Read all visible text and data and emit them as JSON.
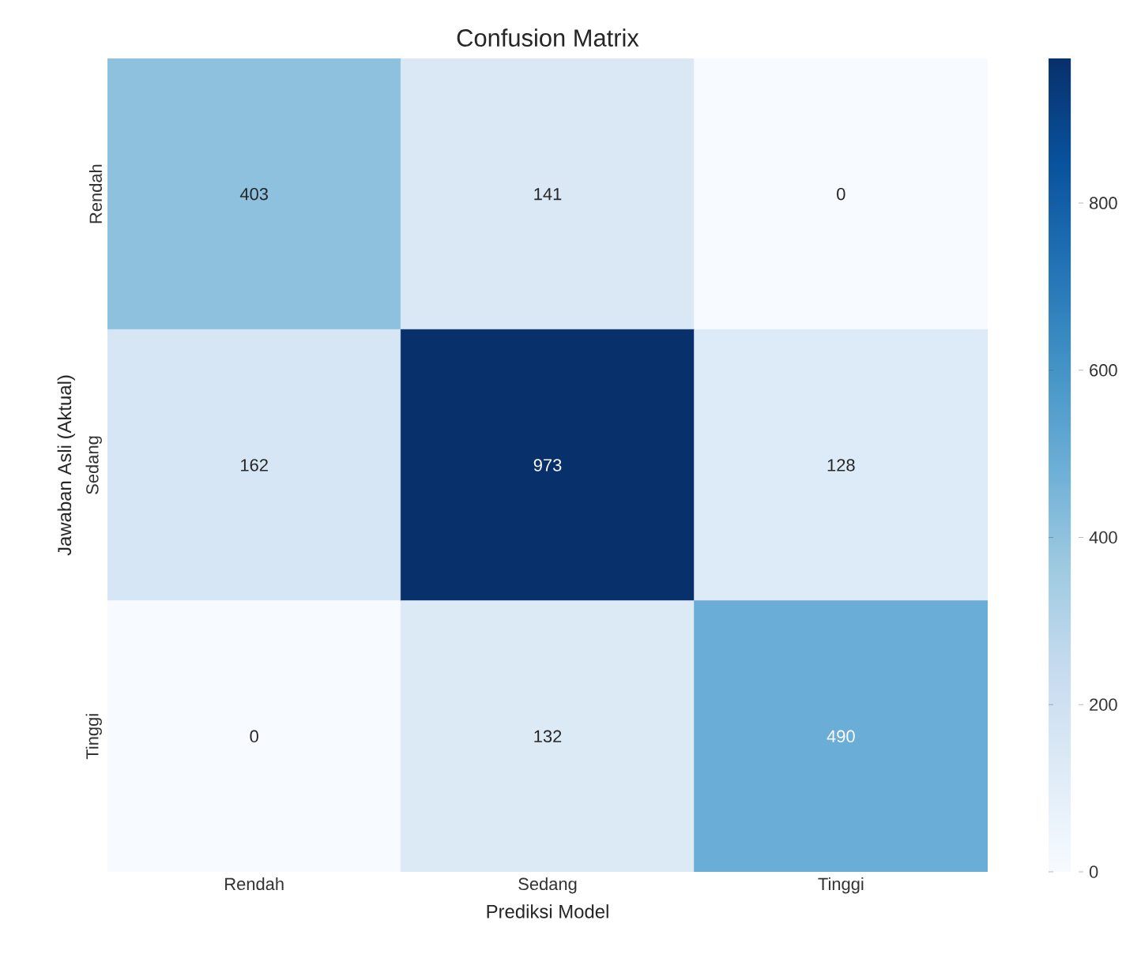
{
  "chart_data": {
    "type": "heatmap",
    "title": "Confusion Matrix",
    "xlabel": "Prediksi Model",
    "ylabel": "Jawaban Asli (Aktual)",
    "categories": [
      "Rendah",
      "Sedang",
      "Tinggi"
    ],
    "y_categories": [
      "Rendah",
      "Sedang",
      "Tinggi"
    ],
    "cells": [
      [
        403,
        141,
        0
      ],
      [
        162,
        973,
        128
      ],
      [
        0,
        132,
        490
      ]
    ],
    "data_labels": true,
    "clim": [
      0,
      973
    ],
    "cticks": [
      0,
      200,
      400,
      600,
      800
    ]
  }
}
